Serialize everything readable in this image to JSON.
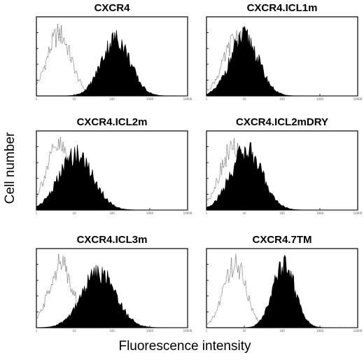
{
  "figure": {
    "xlabel": "Fluorescence intensity",
    "ylabel": "Cell number"
  },
  "chart_data": [
    {
      "type": "area",
      "title": "CXCR4",
      "xscale": "log",
      "xlim": [
        1,
        10000
      ],
      "ylim": [
        0,
        1
      ],
      "series": [
        {
          "role": "control-open",
          "peak_log10": 0.6,
          "width": 0.32,
          "height": 0.78
        },
        {
          "role": "stained-filled",
          "peak_log10": 2.1,
          "width": 0.38,
          "height": 0.72
        }
      ]
    },
    {
      "type": "area",
      "title": "CXCR4.ICL1m",
      "xscale": "log",
      "xlim": [
        1,
        10000
      ],
      "ylim": [
        0,
        1
      ],
      "series": [
        {
          "role": "control-open",
          "peak_log10": 0.85,
          "width": 0.38,
          "height": 0.76
        },
        {
          "role": "stained-filled",
          "peak_log10": 1.0,
          "width": 0.38,
          "height": 0.74
        }
      ]
    },
    {
      "type": "area",
      "title": "CXCR4.ICL2m",
      "xscale": "log",
      "xlim": [
        1,
        10000
      ],
      "ylim": [
        0,
        1
      ],
      "series": [
        {
          "role": "control-open",
          "peak_log10": 0.6,
          "width": 0.35,
          "height": 0.8
        },
        {
          "role": "stained-filled",
          "peak_log10": 1.05,
          "width": 0.45,
          "height": 0.7
        }
      ]
    },
    {
      "type": "area",
      "title": "CXCR4.ICL2mDRY",
      "xscale": "log",
      "xlim": [
        1,
        10000
      ],
      "ylim": [
        0,
        1
      ],
      "series": [
        {
          "role": "control-open",
          "peak_log10": 0.7,
          "width": 0.35,
          "height": 0.78
        },
        {
          "role": "stained-filled",
          "peak_log10": 1.05,
          "width": 0.42,
          "height": 0.75
        }
      ]
    },
    {
      "type": "area",
      "title": "CXCR4.ICL3m",
      "xscale": "log",
      "xlim": [
        1,
        10000
      ],
      "ylim": [
        0,
        1
      ],
      "series": [
        {
          "role": "control-open",
          "peak_log10": 0.65,
          "width": 0.32,
          "height": 0.8
        },
        {
          "role": "stained-filled",
          "peak_log10": 1.65,
          "width": 0.45,
          "height": 0.7
        }
      ]
    },
    {
      "type": "area",
      "title": "CXCR4.7TM",
      "xscale": "log",
      "xlim": [
        1,
        10000
      ],
      "ylim": [
        0,
        1
      ],
      "series": [
        {
          "role": "control-open",
          "peak_log10": 0.75,
          "width": 0.3,
          "height": 0.8
        },
        {
          "role": "stained-filled",
          "peak_log10": 2.05,
          "width": 0.3,
          "height": 0.78
        }
      ]
    }
  ]
}
